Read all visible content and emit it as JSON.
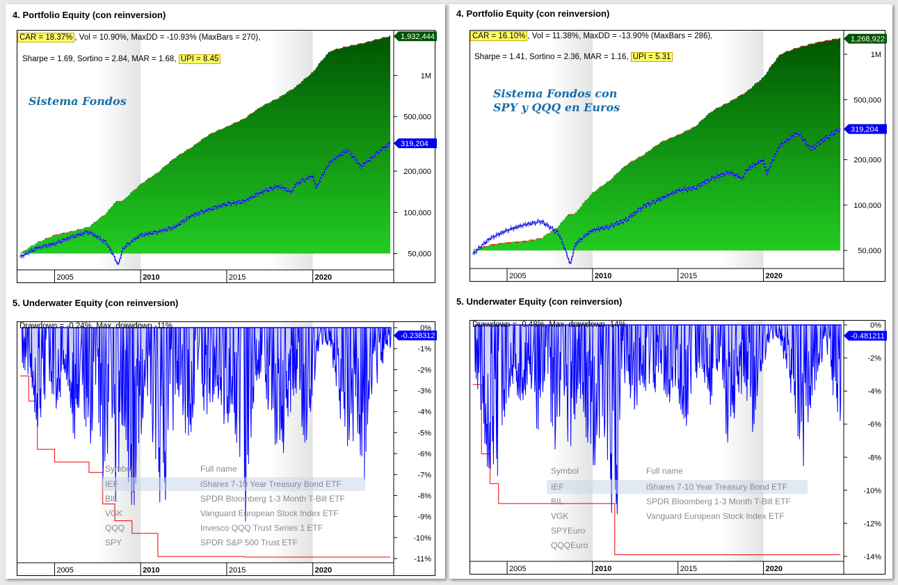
{
  "colors": {
    "equity_fill_top": "#005500",
    "equity_fill_bottom": "#22cc22",
    "drawdown_red": "#ee0000",
    "benchmark_blue": "#0000ee",
    "underwater_blue": "#0000ff",
    "highlight": "#ffff66"
  },
  "left": {
    "equity_title": "4. Portfolio Equity (con reinversion)",
    "stats": {
      "car": "CAR = 18.37%",
      "line1_rest": ", Vol = 10.90%, MaxDD = -10.93% (MaxBars = 270),",
      "line2_pre": "Sharpe = 1.69, Sortino = 2.84, MAR = 1.68,",
      "upi": "UPI = 8.45"
    },
    "watermark_line1": "Sistema Fondos",
    "watermark_line2": "",
    "underwater_title": "5. Underwater Equity (con reinversion)",
    "dd_stat": "Drawdown = -0.24%, Max. drawdown -11%",
    "table": {
      "header_symbol": "Symbol",
      "header_fullname": "Full name",
      "rows": [
        {
          "symbol": "IEF",
          "name": "iShares 7-10 Year Treasury Bond ETF"
        },
        {
          "symbol": "BIL",
          "name": "SPDR Bloomberg 1-3 Month T-Bill ETF"
        },
        {
          "symbol": "VGK",
          "name": "Vanguard European Stock Index ETF"
        },
        {
          "symbol": "QQQ",
          "name": "Invesco QQQ Trust Series 1 ETF"
        },
        {
          "symbol": "SPY",
          "name": "SPDR S&P 500 Trust ETF"
        }
      ]
    }
  },
  "right": {
    "equity_title": "4. Portfolio Equity (con reinversion)",
    "stats": {
      "car": "CAR = 16.10%",
      "line1_rest": ", Vol = 11.38%, MaxDD = -13.90% (MaxBars = 286),",
      "line2_pre": "Sharpe = 1.41, Sortino = 2.36, MAR = 1.16,",
      "upi": "UPI = 5.31"
    },
    "watermark_line1": "Sistema Fondos con",
    "watermark_line2": "SPY y QQQ en Euros",
    "underwater_title": "5. Underwater Equity (con reinversion)",
    "dd_stat": "Drawdown = -0.48%, Max. drawdown -14%",
    "table": {
      "header_symbol": "Symbol",
      "header_fullname": "Full name",
      "rows": [
        {
          "symbol": "IEF",
          "name": "iShares 7-10 Year Treasury Bond ETF"
        },
        {
          "symbol": "BIL",
          "name": "SPDR Bloomberg 1-3 Month T-Bill ETF"
        },
        {
          "symbol": "VGK",
          "name": "Vanguard European Stock Index ETF"
        },
        {
          "symbol": "SPYEuro",
          "name": ""
        },
        {
          "symbol": "QQQEuro",
          "name": ""
        }
      ]
    }
  },
  "chart_data": [
    {
      "id": "left-equity",
      "type": "area",
      "title": "4. Portfolio Equity (con reinversion)",
      "y_scale": "log",
      "xlim": [
        2002.8,
        2024.7
      ],
      "ylim": [
        38000,
        2150000
      ],
      "x_ticks": [
        {
          "value": 2005,
          "label": "2005",
          "bold": false
        },
        {
          "value": 2010,
          "label": "2010",
          "bold": true
        },
        {
          "value": 2015,
          "label": "2015",
          "bold": false
        },
        {
          "value": 2020,
          "label": "2020",
          "bold": true
        }
      ],
      "y_ticks": [
        {
          "value": 50000,
          "label": "50,000"
        },
        {
          "value": 100000,
          "label": "100,000"
        },
        {
          "value": 200000,
          "label": "200,000"
        },
        {
          "value": 500000,
          "label": "500,000"
        },
        {
          "value": 1000000,
          "label": "1M"
        }
      ],
      "last_value_labels": [
        {
          "series": "equity",
          "value": 1932444,
          "label": "1,932,444"
        },
        {
          "series": "benchmark",
          "value": 319204,
          "label": "319,204"
        }
      ],
      "series": [
        {
          "id": "equity",
          "x": [
            2003.0,
            2004.0,
            2005.0,
            2006.0,
            2007.0,
            2008.0,
            2008.5,
            2009.0,
            2010.0,
            2011.0,
            2012.0,
            2013.0,
            2014.0,
            2015.0,
            2016.0,
            2017.0,
            2018.0,
            2019.0,
            2020.0,
            2021.0,
            2022.0,
            2023.0,
            2024.5
          ],
          "y": [
            50000,
            60000,
            68000,
            72000,
            78000,
            98000,
            118000,
            122000,
            160000,
            195000,
            250000,
            300000,
            370000,
            420000,
            480000,
            590000,
            680000,
            820000,
            1050000,
            1500000,
            1620000,
            1720000,
            1932444
          ]
        },
        {
          "id": "benchmark",
          "x": [
            2003.0,
            2004.0,
            2005.0,
            2006.0,
            2007.0,
            2008.0,
            2008.7,
            2009.0,
            2010.0,
            2011.0,
            2012.0,
            2013.0,
            2014.0,
            2015.0,
            2016.0,
            2017.0,
            2018.0,
            2018.8,
            2019.0,
            2020.0,
            2020.2,
            2021.0,
            2022.0,
            2022.8,
            2023.5,
            2024.5
          ],
          "y": [
            47000,
            55000,
            59000,
            66000,
            72000,
            60000,
            41000,
            55000,
            68000,
            72000,
            78000,
            95000,
            105000,
            115000,
            120000,
            140000,
            155000,
            140000,
            160000,
            185000,
            150000,
            230000,
            285000,
            215000,
            255000,
            319204
          ]
        }
      ]
    },
    {
      "id": "left-underwater",
      "type": "area",
      "title": "5. Underwater Equity (con reinversion)",
      "xlim": [
        2002.8,
        2024.7
      ],
      "ylim": [
        -11.2,
        0.3
      ],
      "x_ticks": [
        {
          "value": 2005,
          "label": "2005",
          "bold": false
        },
        {
          "value": 2010,
          "label": "2010",
          "bold": true
        },
        {
          "value": 2015,
          "label": "2015",
          "bold": false
        },
        {
          "value": 2020,
          "label": "2020",
          "bold": true
        }
      ],
      "y_ticks": [
        {
          "value": 0,
          "label": "0%"
        },
        {
          "value": -1,
          "label": "-1%"
        },
        {
          "value": -2,
          "label": "-2%"
        },
        {
          "value": -3,
          "label": "-3%"
        },
        {
          "value": -4,
          "label": "-4%"
        },
        {
          "value": -5,
          "label": "-5%"
        },
        {
          "value": -6,
          "label": "-6%"
        },
        {
          "value": -7,
          "label": "-7%"
        },
        {
          "value": -8,
          "label": "-8%"
        },
        {
          "value": -9,
          "label": "-9%"
        },
        {
          "value": -10,
          "label": "-10%"
        },
        {
          "value": -11,
          "label": "-11%"
        }
      ],
      "last_value_label": {
        "value": -0.238312,
        "label": "-0.238312"
      },
      "max_drawdown_step": {
        "x": [
          2003.0,
          2003.5,
          2004.0,
          2005.0,
          2007.0,
          2007.8,
          2008.5,
          2009.5,
          2011.0,
          2016.0,
          2024.5
        ],
        "y": [
          -2.3,
          -3.5,
          -5.8,
          -6.4,
          -6.9,
          -8.4,
          -9.2,
          -9.8,
          -10.9,
          -10.93,
          -10.93
        ]
      },
      "drawdown_dips": [
        {
          "x": 2003.2,
          "y": -2.0
        },
        {
          "x": 2003.7,
          "y": -3.2
        },
        {
          "x": 2004.1,
          "y": -5.6
        },
        {
          "x": 2004.6,
          "y": -3.0
        },
        {
          "x": 2005.1,
          "y": -4.2
        },
        {
          "x": 2005.6,
          "y": -2.5
        },
        {
          "x": 2006.2,
          "y": -5.9
        },
        {
          "x": 2006.5,
          "y": -3.0
        },
        {
          "x": 2007.1,
          "y": -6.6
        },
        {
          "x": 2007.5,
          "y": -4.1
        },
        {
          "x": 2007.9,
          "y": -8.2
        },
        {
          "x": 2008.3,
          "y": -5.0
        },
        {
          "x": 2008.6,
          "y": -9.0
        },
        {
          "x": 2009.0,
          "y": -4.5
        },
        {
          "x": 2009.5,
          "y": -9.6
        },
        {
          "x": 2009.9,
          "y": -6.2
        },
        {
          "x": 2010.3,
          "y": -3.5
        },
        {
          "x": 2010.7,
          "y": -5.5
        },
        {
          "x": 2011.2,
          "y": -9.2
        },
        {
          "x": 2011.7,
          "y": -7.4
        },
        {
          "x": 2012.2,
          "y": -4.0
        },
        {
          "x": 2012.8,
          "y": -5.9
        },
        {
          "x": 2013.3,
          "y": -3.0
        },
        {
          "x": 2013.9,
          "y": -4.8
        },
        {
          "x": 2014.4,
          "y": -3.3
        },
        {
          "x": 2014.9,
          "y": -5.2
        },
        {
          "x": 2015.3,
          "y": -3.9
        },
        {
          "x": 2015.8,
          "y": -7.6
        },
        {
          "x": 2016.1,
          "y": -10.9
        },
        {
          "x": 2016.6,
          "y": -3.2
        },
        {
          "x": 2017.1,
          "y": -2.0
        },
        {
          "x": 2017.6,
          "y": -5.8
        },
        {
          "x": 2018.1,
          "y": -6.9
        },
        {
          "x": 2018.7,
          "y": -4.2
        },
        {
          "x": 2019.1,
          "y": -3.0
        },
        {
          "x": 2019.6,
          "y": -6.3
        },
        {
          "x": 2020.1,
          "y": -2.6
        },
        {
          "x": 2020.4,
          "y": -1.1
        },
        {
          "x": 2021.0,
          "y": -0.8
        },
        {
          "x": 2021.6,
          "y": -4.5
        },
        {
          "x": 2022.0,
          "y": -6.0
        },
        {
          "x": 2022.5,
          "y": -5.5
        },
        {
          "x": 2023.0,
          "y": -7.4
        },
        {
          "x": 2023.3,
          "y": -3.5
        },
        {
          "x": 2023.8,
          "y": -2.6
        },
        {
          "x": 2024.3,
          "y": -1.0
        }
      ]
    },
    {
      "id": "right-equity",
      "type": "area",
      "title": "4. Portfolio Equity (con reinversion)",
      "y_scale": "log",
      "xlim": [
        2002.8,
        2024.7
      ],
      "ylim": [
        38000,
        1450000
      ],
      "x_ticks": [
        {
          "value": 2005,
          "label": "2005",
          "bold": false
        },
        {
          "value": 2010,
          "label": "2010",
          "bold": true
        },
        {
          "value": 2015,
          "label": "2015",
          "bold": false
        },
        {
          "value": 2020,
          "label": "2020",
          "bold": true
        }
      ],
      "y_ticks": [
        {
          "value": 50000,
          "label": "50,000"
        },
        {
          "value": 100000,
          "label": "100,000"
        },
        {
          "value": 200000,
          "label": "200,000"
        },
        {
          "value": 500000,
          "label": "500,000"
        },
        {
          "value": 1000000,
          "label": "1M"
        }
      ],
      "last_value_labels": [
        {
          "series": "equity",
          "value": 1268922,
          "label": "1,268,922"
        },
        {
          "series": "benchmark",
          "value": 319204,
          "label": "319,204"
        }
      ],
      "series": [
        {
          "id": "equity",
          "x": [
            2003.0,
            2004.0,
            2005.0,
            2006.0,
            2007.0,
            2008.0,
            2008.5,
            2009.0,
            2010.0,
            2011.0,
            2012.0,
            2013.0,
            2014.0,
            2015.0,
            2016.0,
            2017.0,
            2018.0,
            2019.0,
            2020.0,
            2021.0,
            2022.0,
            2023.0,
            2024.5
          ],
          "y": [
            50000,
            54000,
            56000,
            57000,
            60000,
            72000,
            85000,
            88000,
            120000,
            145000,
            185000,
            215000,
            260000,
            290000,
            330000,
            420000,
            480000,
            560000,
            700000,
            1000000,
            1100000,
            1180000,
            1268922
          ]
        },
        {
          "id": "benchmark",
          "x": [
            2003.0,
            2004.0,
            2005.0,
            2006.0,
            2007.0,
            2008.0,
            2008.7,
            2009.0,
            2010.0,
            2011.0,
            2012.0,
            2013.0,
            2014.0,
            2015.0,
            2016.0,
            2017.0,
            2018.0,
            2018.8,
            2019.0,
            2020.0,
            2020.2,
            2021.0,
            2022.0,
            2022.8,
            2023.5,
            2024.5
          ],
          "y": [
            47000,
            60000,
            68000,
            74000,
            78000,
            65000,
            40000,
            55000,
            68000,
            72000,
            80000,
            98000,
            110000,
            125000,
            130000,
            150000,
            165000,
            150000,
            170000,
            200000,
            160000,
            250000,
            300000,
            235000,
            270000,
            319204
          ]
        }
      ]
    },
    {
      "id": "right-underwater",
      "type": "area",
      "title": "5. Underwater Equity (con reinversion)",
      "xlim": [
        2002.8,
        2024.7
      ],
      "ylim": [
        -14.3,
        0.3
      ],
      "x_ticks": [
        {
          "value": 2005,
          "label": "2005",
          "bold": false
        },
        {
          "value": 2010,
          "label": "2010",
          "bold": true
        },
        {
          "value": 2015,
          "label": "2015",
          "bold": false
        },
        {
          "value": 2020,
          "label": "2020",
          "bold": true
        }
      ],
      "y_ticks": [
        {
          "value": 0,
          "label": "0%"
        },
        {
          "value": -2,
          "label": "-2%"
        },
        {
          "value": -4,
          "label": "-4%"
        },
        {
          "value": -6,
          "label": "-6%"
        },
        {
          "value": -8,
          "label": "-8%"
        },
        {
          "value": -10,
          "label": "-10%"
        },
        {
          "value": -12,
          "label": "-12%"
        },
        {
          "value": -14,
          "label": "-14%"
        }
      ],
      "last_value_label": {
        "value": -0.481211,
        "label": "-0.481211"
      },
      "max_drawdown_step": {
        "x": [
          2003.0,
          2003.5,
          2004.0,
          2004.5,
          2011.3,
          2024.5
        ],
        "y": [
          -3.6,
          -7.8,
          -9.6,
          -10.8,
          -13.9,
          -13.9
        ]
      },
      "drawdown_dips": [
        {
          "x": 2003.2,
          "y": -3.4
        },
        {
          "x": 2003.6,
          "y": -7.5
        },
        {
          "x": 2004.0,
          "y": -9.4
        },
        {
          "x": 2004.4,
          "y": -10.6
        },
        {
          "x": 2004.9,
          "y": -6.0
        },
        {
          "x": 2005.3,
          "y": -3.5
        },
        {
          "x": 2005.8,
          "y": -5.9
        },
        {
          "x": 2006.3,
          "y": -3.2
        },
        {
          "x": 2006.8,
          "y": -6.8
        },
        {
          "x": 2007.2,
          "y": -4.1
        },
        {
          "x": 2007.8,
          "y": -7.6
        },
        {
          "x": 2008.3,
          "y": -5.2
        },
        {
          "x": 2008.7,
          "y": -8.3
        },
        {
          "x": 2009.2,
          "y": -3.9
        },
        {
          "x": 2009.7,
          "y": -7.4
        },
        {
          "x": 2010.2,
          "y": -9.4
        },
        {
          "x": 2010.7,
          "y": -6.8
        },
        {
          "x": 2011.3,
          "y": -13.9
        },
        {
          "x": 2011.9,
          "y": -4.2
        },
        {
          "x": 2012.4,
          "y": -6.2
        },
        {
          "x": 2012.9,
          "y": -3.5
        },
        {
          "x": 2013.4,
          "y": -5.8
        },
        {
          "x": 2013.9,
          "y": -3.0
        },
        {
          "x": 2014.4,
          "y": -5.5
        },
        {
          "x": 2014.9,
          "y": -3.8
        },
        {
          "x": 2015.4,
          "y": -6.9
        },
        {
          "x": 2015.9,
          "y": -4.2
        },
        {
          "x": 2016.4,
          "y": -3.0
        },
        {
          "x": 2016.9,
          "y": -5.0
        },
        {
          "x": 2017.4,
          "y": -2.5
        },
        {
          "x": 2017.9,
          "y": -8.4
        },
        {
          "x": 2018.4,
          "y": -5.0
        },
        {
          "x": 2018.9,
          "y": -3.9
        },
        {
          "x": 2019.4,
          "y": -6.7
        },
        {
          "x": 2019.9,
          "y": -2.8
        },
        {
          "x": 2020.4,
          "y": -1.2
        },
        {
          "x": 2020.9,
          "y": -0.8
        },
        {
          "x": 2021.5,
          "y": -3.5
        },
        {
          "x": 2021.9,
          "y": -6.5
        },
        {
          "x": 2022.4,
          "y": -9.2
        },
        {
          "x": 2022.8,
          "y": -5.0
        },
        {
          "x": 2023.2,
          "y": -3.0
        },
        {
          "x": 2023.7,
          "y": -1.5
        },
        {
          "x": 2024.3,
          "y": -6.0
        }
      ]
    }
  ]
}
